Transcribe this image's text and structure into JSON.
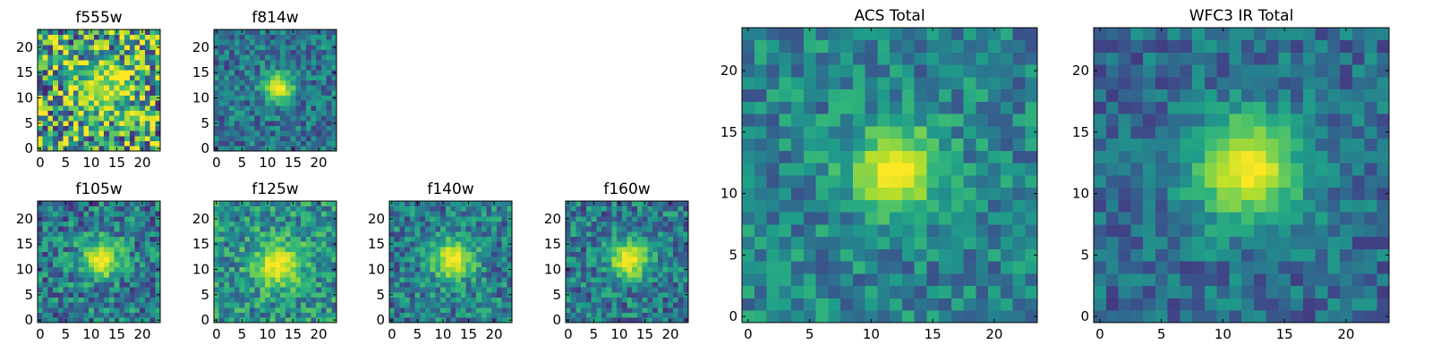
{
  "chart_data": [
    {
      "type": "heatmap",
      "title": "f555w",
      "xlabel": "",
      "ylabel": "",
      "grid_size": 24,
      "xlim": [
        -0.5,
        23.5
      ],
      "ylim": [
        -0.5,
        23.5
      ],
      "xticks": [
        0,
        5,
        10,
        15,
        20
      ],
      "yticks": [
        0,
        5,
        10,
        15,
        20
      ],
      "xtick_labels": [
        "0",
        "5",
        "10",
        "15",
        "20"
      ],
      "ytick_labels": [
        "0",
        "5",
        "10",
        "15",
        "20"
      ],
      "source_center": [
        12,
        12
      ],
      "source_peak": 0.85,
      "source_sigma": 3.5,
      "background_level": 0.6,
      "noise_amplitude": 0.5,
      "colormap": "viridis"
    },
    {
      "type": "heatmap",
      "title": "f814w",
      "xlabel": "",
      "ylabel": "",
      "grid_size": 24,
      "xlim": [
        -0.5,
        23.5
      ],
      "ylim": [
        -0.5,
        23.5
      ],
      "xticks": [
        0,
        5,
        10,
        15,
        20
      ],
      "yticks": [
        0,
        5,
        10,
        15,
        20
      ],
      "xtick_labels": [
        "0",
        "5",
        "10",
        "15",
        "20"
      ],
      "ytick_labels": [
        "0",
        "5",
        "10",
        "15",
        "20"
      ],
      "source_center": [
        12,
        12
      ],
      "source_peak": 1.0,
      "source_sigma": 2.2,
      "background_level": 0.38,
      "noise_amplitude": 0.22,
      "colormap": "viridis"
    },
    {
      "type": "heatmap",
      "title": "f105w",
      "xlabel": "",
      "ylabel": "",
      "grid_size": 24,
      "xlim": [
        -0.5,
        23.5
      ],
      "ylim": [
        -0.5,
        23.5
      ],
      "xticks": [
        0,
        5,
        10,
        15,
        20
      ],
      "yticks": [
        0,
        5,
        10,
        15,
        20
      ],
      "xtick_labels": [
        "0",
        "5",
        "10",
        "15",
        "20"
      ],
      "ytick_labels": [
        "0",
        "5",
        "10",
        "15",
        "20"
      ],
      "source_center": [
        12,
        12
      ],
      "source_peak": 1.0,
      "source_sigma": 2.8,
      "background_level": 0.4,
      "noise_amplitude": 0.28,
      "colormap": "viridis"
    },
    {
      "type": "heatmap",
      "title": "f125w",
      "xlabel": "",
      "ylabel": "",
      "grid_size": 24,
      "xlim": [
        -0.5,
        23.5
      ],
      "ylim": [
        -0.5,
        23.5
      ],
      "xticks": [
        0,
        5,
        10,
        15,
        20
      ],
      "yticks": [
        0,
        5,
        10,
        15,
        20
      ],
      "xtick_labels": [
        "0",
        "5",
        "10",
        "15",
        "20"
      ],
      "ytick_labels": [
        "0",
        "5",
        "10",
        "15",
        "20"
      ],
      "source_center": [
        12,
        11
      ],
      "source_peak": 1.0,
      "source_sigma": 3.2,
      "background_level": 0.5,
      "noise_amplitude": 0.25,
      "colormap": "viridis"
    },
    {
      "type": "heatmap",
      "title": "f140w",
      "xlabel": "",
      "ylabel": "",
      "grid_size": 24,
      "xlim": [
        -0.5,
        23.5
      ],
      "ylim": [
        -0.5,
        23.5
      ],
      "xticks": [
        0,
        5,
        10,
        15,
        20
      ],
      "yticks": [
        0,
        5,
        10,
        15,
        20
      ],
      "xtick_labels": [
        "0",
        "5",
        "10",
        "15",
        "20"
      ],
      "ytick_labels": [
        "0",
        "5",
        "10",
        "15",
        "20"
      ],
      "source_center": [
        12,
        12
      ],
      "source_peak": 1.0,
      "source_sigma": 3.0,
      "background_level": 0.42,
      "noise_amplitude": 0.25,
      "colormap": "viridis"
    },
    {
      "type": "heatmap",
      "title": "f160w",
      "xlabel": "",
      "ylabel": "",
      "grid_size": 24,
      "xlim": [
        -0.5,
        23.5
      ],
      "ylim": [
        -0.5,
        23.5
      ],
      "xticks": [
        0,
        5,
        10,
        15,
        20
      ],
      "yticks": [
        0,
        5,
        10,
        15,
        20
      ],
      "xtick_labels": [
        "0",
        "5",
        "10",
        "15",
        "20"
      ],
      "ytick_labels": [
        "0",
        "5",
        "10",
        "15",
        "20"
      ],
      "source_center": [
        12,
        12
      ],
      "source_peak": 1.0,
      "source_sigma": 2.8,
      "background_level": 0.4,
      "noise_amplitude": 0.25,
      "colormap": "viridis"
    },
    {
      "type": "heatmap",
      "title": "ACS Total",
      "xlabel": "",
      "ylabel": "",
      "grid_size": 24,
      "xlim": [
        -0.5,
        23.5
      ],
      "ylim": [
        -0.5,
        23.5
      ],
      "xticks": [
        0,
        5,
        10,
        15,
        20
      ],
      "yticks": [
        0,
        5,
        10,
        15,
        20
      ],
      "xtick_labels": [
        "0",
        "5",
        "10",
        "15",
        "20"
      ],
      "ytick_labels": [
        "0",
        "5",
        "10",
        "15",
        "20"
      ],
      "source_center": [
        12,
        12
      ],
      "source_peak": 1.0,
      "source_sigma": 2.6,
      "background_level": 0.45,
      "noise_amplitude": 0.2,
      "colormap": "viridis"
    },
    {
      "type": "heatmap",
      "title": "WFC3 IR Total",
      "xlabel": "",
      "ylabel": "",
      "grid_size": 24,
      "xlim": [
        -0.5,
        23.5
      ],
      "ylim": [
        -0.5,
        23.5
      ],
      "xticks": [
        0,
        5,
        10,
        15,
        20
      ],
      "yticks": [
        0,
        5,
        10,
        15,
        20
      ],
      "xtick_labels": [
        "0",
        "5",
        "10",
        "15",
        "20"
      ],
      "ytick_labels": [
        "0",
        "5",
        "10",
        "15",
        "20"
      ],
      "source_center": [
        12,
        12
      ],
      "source_peak": 1.0,
      "source_sigma": 3.3,
      "background_level": 0.35,
      "noise_amplitude": 0.18,
      "colormap": "viridis"
    }
  ]
}
